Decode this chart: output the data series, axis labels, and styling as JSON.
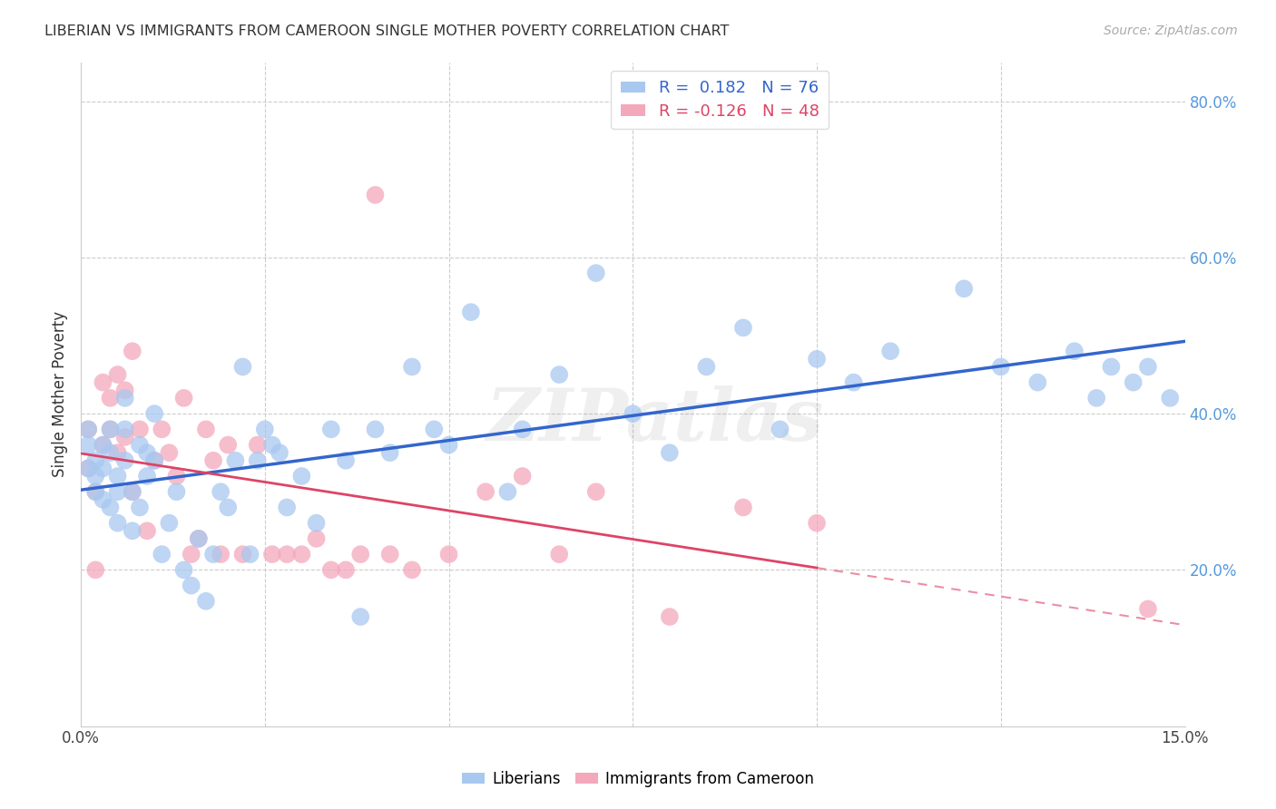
{
  "title": "LIBERIAN VS IMMIGRANTS FROM CAMEROON SINGLE MOTHER POVERTY CORRELATION CHART",
  "source": "Source: ZipAtlas.com",
  "ylabel": "Single Mother Poverty",
  "xlim": [
    0,
    0.15
  ],
  "ylim": [
    0,
    0.85
  ],
  "yticks": [
    0.0,
    0.2,
    0.4,
    0.6,
    0.8
  ],
  "ytick_labels": [
    "",
    "20.0%",
    "40.0%",
    "60.0%",
    "80.0%"
  ],
  "xtick_vals": [
    0.0,
    0.025,
    0.05,
    0.075,
    0.1,
    0.125,
    0.15
  ],
  "xtick_labels": [
    "0.0%",
    "",
    "",
    "",
    "",
    "",
    "15.0%"
  ],
  "r_liberian": 0.182,
  "n_liberian": 76,
  "r_cameroon": -0.126,
  "n_cameroon": 48,
  "blue_color": "#A8C8F0",
  "pink_color": "#F4A8BC",
  "blue_line_color": "#3366CC",
  "pink_line_color": "#DD4466",
  "watermark": "ZIPatlas",
  "legend_label_1": "Liberians",
  "legend_label_2": "Immigrants from Cameroon",
  "liberian_x": [
    0.001,
    0.001,
    0.001,
    0.002,
    0.002,
    0.002,
    0.003,
    0.003,
    0.003,
    0.004,
    0.004,
    0.004,
    0.005,
    0.005,
    0.005,
    0.006,
    0.006,
    0.006,
    0.007,
    0.007,
    0.008,
    0.008,
    0.009,
    0.009,
    0.01,
    0.01,
    0.011,
    0.012,
    0.013,
    0.014,
    0.015,
    0.016,
    0.017,
    0.018,
    0.019,
    0.02,
    0.021,
    0.022,
    0.023,
    0.024,
    0.025,
    0.026,
    0.027,
    0.028,
    0.03,
    0.032,
    0.034,
    0.036,
    0.038,
    0.04,
    0.042,
    0.045,
    0.048,
    0.05,
    0.053,
    0.058,
    0.06,
    0.065,
    0.07,
    0.075,
    0.08,
    0.085,
    0.09,
    0.095,
    0.1,
    0.105,
    0.11,
    0.12,
    0.125,
    0.13,
    0.135,
    0.138,
    0.14,
    0.143,
    0.145,
    0.148
  ],
  "liberian_y": [
    0.38,
    0.33,
    0.36,
    0.34,
    0.3,
    0.32,
    0.29,
    0.33,
    0.36,
    0.28,
    0.35,
    0.38,
    0.3,
    0.26,
    0.32,
    0.34,
    0.38,
    0.42,
    0.25,
    0.3,
    0.28,
    0.36,
    0.32,
    0.35,
    0.4,
    0.34,
    0.22,
    0.26,
    0.3,
    0.2,
    0.18,
    0.24,
    0.16,
    0.22,
    0.3,
    0.28,
    0.34,
    0.46,
    0.22,
    0.34,
    0.38,
    0.36,
    0.35,
    0.28,
    0.32,
    0.26,
    0.38,
    0.34,
    0.14,
    0.38,
    0.35,
    0.46,
    0.38,
    0.36,
    0.53,
    0.3,
    0.38,
    0.45,
    0.58,
    0.4,
    0.35,
    0.46,
    0.51,
    0.38,
    0.47,
    0.44,
    0.48,
    0.56,
    0.46,
    0.44,
    0.48,
    0.42,
    0.46,
    0.44,
    0.46,
    0.42
  ],
  "cameroon_x": [
    0.001,
    0.001,
    0.002,
    0.002,
    0.003,
    0.003,
    0.004,
    0.004,
    0.005,
    0.005,
    0.006,
    0.006,
    0.007,
    0.007,
    0.008,
    0.009,
    0.01,
    0.011,
    0.012,
    0.013,
    0.014,
    0.015,
    0.016,
    0.017,
    0.018,
    0.019,
    0.02,
    0.022,
    0.024,
    0.026,
    0.028,
    0.03,
    0.032,
    0.034,
    0.036,
    0.038,
    0.04,
    0.042,
    0.045,
    0.05,
    0.055,
    0.06,
    0.065,
    0.07,
    0.08,
    0.09,
    0.1,
    0.145
  ],
  "cameroon_y": [
    0.33,
    0.38,
    0.3,
    0.2,
    0.44,
    0.36,
    0.38,
    0.42,
    0.45,
    0.35,
    0.43,
    0.37,
    0.48,
    0.3,
    0.38,
    0.25,
    0.34,
    0.38,
    0.35,
    0.32,
    0.42,
    0.22,
    0.24,
    0.38,
    0.34,
    0.22,
    0.36,
    0.22,
    0.36,
    0.22,
    0.22,
    0.22,
    0.24,
    0.2,
    0.2,
    0.22,
    0.68,
    0.22,
    0.2,
    0.22,
    0.3,
    0.32,
    0.22,
    0.3,
    0.14,
    0.28,
    0.26,
    0.15
  ]
}
